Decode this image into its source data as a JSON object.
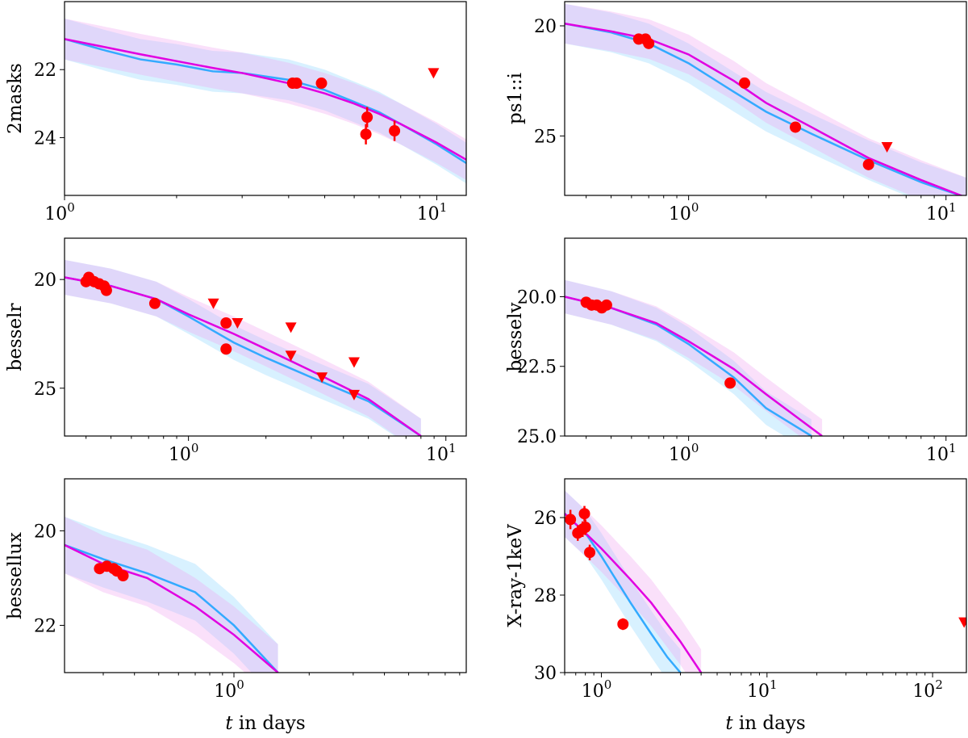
{
  "colors": {
    "model_a": "#33aaff",
    "model_b": "#e100e1",
    "band_a": "#8fd8ff",
    "band_b": "#f0a6f0",
    "points": "#ff0000"
  },
  "chart_data": [
    {
      "type": "scatter",
      "ylabel": "2masks",
      "xlabel": "",
      "xscale": "log",
      "xlim": [
        1,
        12
      ],
      "ylim": [
        25.7,
        20.0
      ],
      "y_inverted": true,
      "xticks": [
        {
          "v": 1,
          "label": "10^0"
        },
        {
          "v": 10,
          "label": "10^1"
        }
      ],
      "yticks": [
        {
          "v": 22,
          "label": "22"
        },
        {
          "v": 24,
          "label": "24"
        }
      ],
      "model_a": {
        "x": [
          1,
          1.3,
          1.6,
          2,
          2.5,
          3,
          4,
          5,
          6,
          7,
          8,
          10,
          12
        ],
        "y": [
          21.1,
          21.45,
          21.7,
          21.85,
          22.05,
          22.1,
          22.3,
          22.6,
          22.95,
          23.25,
          23.6,
          24.2,
          24.75
        ]
      },
      "model_b": {
        "x": [
          1,
          1.3,
          1.6,
          2,
          2.5,
          3,
          4,
          5,
          6,
          7,
          8,
          10,
          12
        ],
        "y": [
          21.1,
          21.35,
          21.55,
          21.75,
          21.95,
          22.1,
          22.4,
          22.7,
          23.0,
          23.3,
          23.6,
          24.15,
          24.65
        ]
      },
      "band": 0.6,
      "points": [
        {
          "x": 4.1,
          "y": 22.4,
          "err": 0.1
        },
        {
          "x": 4.2,
          "y": 22.4,
          "err": 0.1
        },
        {
          "x": 4.9,
          "y": 22.4,
          "err": 0.15
        },
        {
          "x": 6.5,
          "y": 23.4,
          "err": 0.3
        },
        {
          "x": 6.45,
          "y": 23.9,
          "err": 0.3
        },
        {
          "x": 7.7,
          "y": 23.8,
          "err": 0.3
        }
      ],
      "upper_limits": [
        {
          "x": 9.8,
          "y": 22.1
        }
      ]
    },
    {
      "type": "scatter",
      "ylabel": "ps1::i",
      "xlabel": "",
      "xscale": "log",
      "xlim": [
        0.33,
        12
      ],
      "ylim": [
        27.7,
        18.9
      ],
      "y_inverted": true,
      "xticks": [
        {
          "v": 1,
          "label": "10^0"
        },
        {
          "v": 10,
          "label": "10^1"
        }
      ],
      "yticks": [
        {
          "v": 20,
          "label": "20"
        },
        {
          "v": 25,
          "label": "25"
        }
      ],
      "model_a": {
        "x": [
          0.33,
          0.5,
          0.7,
          1,
          1.5,
          2,
          3,
          5,
          8,
          12
        ],
        "y": [
          19.9,
          20.3,
          20.8,
          21.7,
          23.0,
          23.9,
          24.9,
          26.1,
          27.1,
          27.8
        ]
      },
      "model_b": {
        "x": [
          0.33,
          0.5,
          0.7,
          1,
          1.5,
          2,
          3,
          5,
          8,
          12
        ],
        "y": [
          19.9,
          20.25,
          20.6,
          21.3,
          22.5,
          23.5,
          24.6,
          26.0,
          27.0,
          27.8
        ]
      },
      "band": 0.9,
      "points": [
        {
          "x": 0.64,
          "y": 20.6,
          "err": 0.15
        },
        {
          "x": 0.68,
          "y": 20.6,
          "err": 0.15
        },
        {
          "x": 0.7,
          "y": 20.8,
          "err": 0.15
        },
        {
          "x": 1.65,
          "y": 22.6,
          "err": 0.15
        },
        {
          "x": 2.6,
          "y": 24.6,
          "err": 0.2
        },
        {
          "x": 5.0,
          "y": 26.3,
          "err": 0.15
        }
      ],
      "upper_limits": [
        {
          "x": 5.9,
          "y": 25.5
        }
      ]
    },
    {
      "type": "scatter",
      "ylabel": "besselr",
      "xlabel": "",
      "xscale": "log",
      "xlim": [
        0.33,
        12
      ],
      "ylim": [
        27.2,
        18.1
      ],
      "y_inverted": true,
      "xticks": [
        {
          "v": 1,
          "label": "10^0"
        },
        {
          "v": 10,
          "label": "10^1"
        }
      ],
      "yticks": [
        {
          "v": 20,
          "label": "20"
        },
        {
          "v": 25,
          "label": "25"
        }
      ],
      "model_a": {
        "x": [
          0.33,
          0.5,
          0.75,
          1,
          1.5,
          2,
          3,
          5,
          8
        ],
        "y": [
          19.9,
          20.3,
          20.9,
          21.7,
          22.9,
          23.6,
          24.5,
          25.6,
          27.2
        ]
      },
      "model_b": {
        "x": [
          0.33,
          0.5,
          0.75,
          1,
          1.5,
          2,
          3,
          5,
          8
        ],
        "y": [
          19.9,
          20.3,
          20.9,
          21.6,
          22.5,
          23.2,
          24.2,
          25.5,
          27.2
        ]
      },
      "band": 0.8,
      "points": [
        {
          "x": 0.4,
          "y": 20.1,
          "err": 0.15
        },
        {
          "x": 0.41,
          "y": 19.9,
          "err": 0.15
        },
        {
          "x": 0.43,
          "y": 20.1,
          "err": 0.15
        },
        {
          "x": 0.45,
          "y": 20.2,
          "err": 0.15
        },
        {
          "x": 0.47,
          "y": 20.3,
          "err": 0.15
        },
        {
          "x": 0.48,
          "y": 20.5,
          "err": 0.15
        },
        {
          "x": 0.74,
          "y": 21.1,
          "err": 0.15
        },
        {
          "x": 1.4,
          "y": 22.0,
          "err": 0.15
        },
        {
          "x": 1.4,
          "y": 23.2,
          "err": 0.15
        }
      ],
      "upper_limits": [
        {
          "x": 1.25,
          "y": 21.1
        },
        {
          "x": 1.55,
          "y": 22.0
        },
        {
          "x": 2.5,
          "y": 22.2
        },
        {
          "x": 2.5,
          "y": 23.5
        },
        {
          "x": 3.3,
          "y": 24.5
        },
        {
          "x": 4.4,
          "y": 23.8
        },
        {
          "x": 4.4,
          "y": 25.3
        }
      ]
    },
    {
      "type": "scatter",
      "ylabel": "besselv",
      "xlabel": "",
      "xscale": "log",
      "xlim": [
        0.33,
        12
      ],
      "ylim": [
        25.0,
        17.9
      ],
      "y_inverted": true,
      "xticks": [
        {
          "v": 1,
          "label": "10^0"
        },
        {
          "v": 10,
          "label": "10^1"
        }
      ],
      "yticks": [
        {
          "v": 20,
          "label": "20.0"
        },
        {
          "v": 22.5,
          "label": "22.5"
        },
        {
          "v": 25,
          "label": "25.0"
        }
      ],
      "model_a": {
        "x": [
          0.33,
          0.5,
          0.75,
          1,
          1.5,
          2,
          3
        ],
        "y": [
          20.0,
          20.4,
          21.0,
          21.7,
          22.9,
          24.0,
          25.0
        ]
      },
      "model_b": {
        "x": [
          0.33,
          0.5,
          0.75,
          1,
          1.5,
          2,
          3.3
        ],
        "y": [
          20.0,
          20.4,
          20.95,
          21.6,
          22.6,
          23.5,
          25.0
        ]
      },
      "band": 0.6,
      "points": [
        {
          "x": 0.4,
          "y": 20.2,
          "err": 0.1
        },
        {
          "x": 0.42,
          "y": 20.3,
          "err": 0.1
        },
        {
          "x": 0.44,
          "y": 20.3,
          "err": 0.1
        },
        {
          "x": 0.46,
          "y": 20.4,
          "err": 0.1
        },
        {
          "x": 0.48,
          "y": 20.3,
          "err": 0.1
        },
        {
          "x": 1.45,
          "y": 23.1,
          "err": 0.1
        }
      ],
      "upper_limits": []
    },
    {
      "type": "scatter",
      "ylabel": "bessellux",
      "xlabel": "t in days",
      "xscale": "log",
      "xlim": [
        0.21,
        8.5
      ],
      "ylim": [
        23.0,
        18.9
      ],
      "y_inverted": true,
      "xticks": [
        {
          "v": 1,
          "label": "10^0"
        }
      ],
      "yticks": [
        {
          "v": 20,
          "label": "20"
        },
        {
          "v": 22,
          "label": "22"
        }
      ],
      "model_a": {
        "x": [
          0.21,
          0.3,
          0.45,
          0.7,
          1,
          1.5
        ],
        "y": [
          20.3,
          20.6,
          20.9,
          21.3,
          22.0,
          23.0
        ]
      },
      "model_b": {
        "x": [
          0.21,
          0.3,
          0.45,
          0.7,
          1,
          1.5
        ],
        "y": [
          20.3,
          20.7,
          21.0,
          21.6,
          22.2,
          23.0
        ]
      },
      "band": 0.6,
      "points": [
        {
          "x": 0.29,
          "y": 20.8,
          "err": 0.1
        },
        {
          "x": 0.31,
          "y": 20.75,
          "err": 0.1
        },
        {
          "x": 0.33,
          "y": 20.8,
          "err": 0.1
        },
        {
          "x": 0.34,
          "y": 20.85,
          "err": 0.1
        },
        {
          "x": 0.36,
          "y": 20.95,
          "err": 0.1
        }
      ],
      "upper_limits": []
    },
    {
      "type": "scatter",
      "ylabel": "X-ray-1keV",
      "xlabel": "t in days",
      "xscale": "log",
      "xlim": [
        0.6,
        160
      ],
      "ylim": [
        30.0,
        25.0
      ],
      "y_inverted": true,
      "xticks": [
        {
          "v": 1,
          "label": "10^0"
        },
        {
          "v": 10,
          "label": "10^1"
        },
        {
          "v": 100,
          "label": "10^2"
        }
      ],
      "yticks": [
        {
          "v": 26,
          "label": "26"
        },
        {
          "v": 28,
          "label": "28"
        },
        {
          "v": 30,
          "label": "30"
        }
      ],
      "model_a": {
        "x": [
          0.6,
          0.8,
          1.0,
          1.5,
          2,
          2.5,
          3.0
        ],
        "y": [
          25.9,
          26.4,
          27.0,
          28.2,
          29.0,
          29.6,
          30.0
        ]
      },
      "model_b": {
        "x": [
          0.6,
          0.8,
          1.0,
          1.5,
          2,
          3,
          4
        ],
        "y": [
          25.9,
          26.4,
          26.8,
          27.6,
          28.2,
          29.2,
          30.0
        ]
      },
      "band": 0.6,
      "points": [
        {
          "x": 0.65,
          "y": 26.05,
          "err": 0.25
        },
        {
          "x": 0.72,
          "y": 26.4,
          "err": 0.2
        },
        {
          "x": 0.77,
          "y": 26.3,
          "err": 0.2
        },
        {
          "x": 0.79,
          "y": 25.9,
          "err": 0.2
        },
        {
          "x": 0.8,
          "y": 26.25,
          "err": 0.2
        },
        {
          "x": 0.85,
          "y": 26.9,
          "err": 0.2
        },
        {
          "x": 1.35,
          "y": 28.75,
          "err": 0.15
        }
      ],
      "upper_limits": [
        {
          "x": 155,
          "y": 28.7
        }
      ]
    }
  ]
}
